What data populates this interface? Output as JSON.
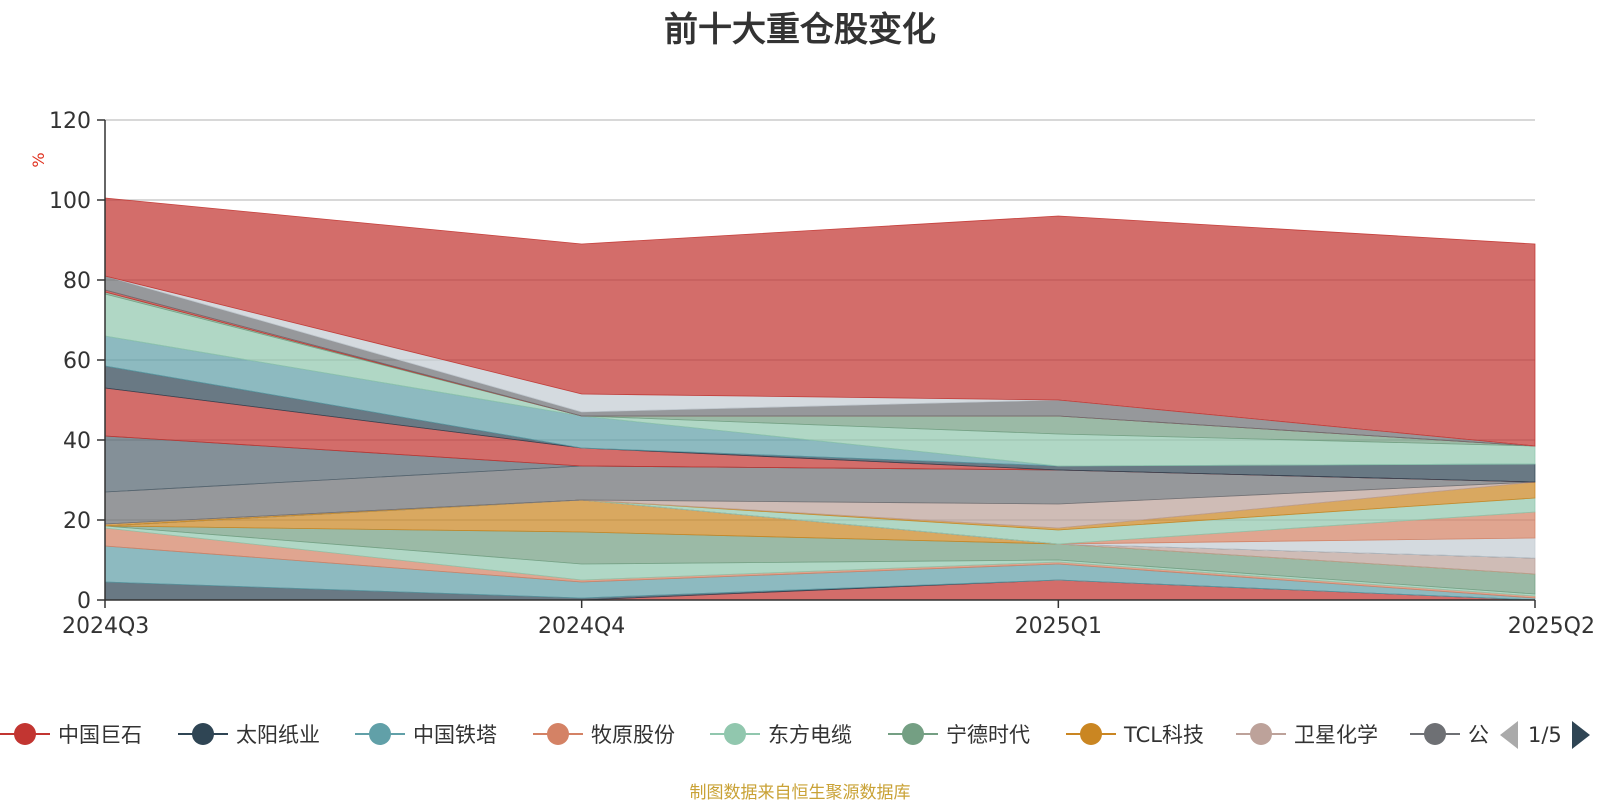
{
  "chart_data": {
    "type": "area",
    "stacked": true,
    "title": "前十大重仓股变化",
    "ylabel": "%",
    "ylim": [
      0,
      120
    ],
    "yticks": [
      0,
      20,
      40,
      60,
      80,
      100,
      120
    ],
    "x": [
      "2024Q3",
      "2024Q4",
      "2025Q1",
      "2025Q2"
    ],
    "grid": true,
    "legend_position": "bottom",
    "series": [
      {
        "name": "中国巨石",
        "color": "#c23531",
        "values": [
          0,
          0,
          5,
          0
        ]
      },
      {
        "name": "太阳纸业",
        "color": "#2f4554",
        "values": [
          4.5,
          0.5,
          0,
          0
        ]
      },
      {
        "name": "中国铁塔",
        "color": "#61a0a8",
        "values": [
          9,
          4,
          4,
          0.5
        ]
      },
      {
        "name": "牧原股份",
        "color": "#d48265",
        "values": [
          4.5,
          0.5,
          0.5,
          0.5
        ]
      },
      {
        "name": "东方电缆",
        "color": "#91c7ae",
        "values": [
          0.5,
          4,
          0.5,
          0.5
        ]
      },
      {
        "name": "宁德时代",
        "color": "#749f83",
        "values": [
          0,
          8,
          4,
          5
        ]
      },
      {
        "name": "TCL科技",
        "color": "#ca8622",
        "values": [
          0,
          8,
          0,
          0
        ]
      },
      {
        "name": "卫星化学",
        "color": "#bda29a",
        "values": [
          0,
          0,
          0,
          4
        ]
      },
      {
        "name": "",
        "color": "#6e7074",
        "values": [
          0,
          0,
          0,
          0
        ]
      },
      {
        "name": "",
        "color": "#546570",
        "values": [
          0,
          0,
          0,
          0
        ]
      },
      {
        "name": "",
        "color": "#c4ccd3",
        "values": [
          0,
          0,
          0,
          5
        ]
      },
      {
        "name": "",
        "color": "#d48265",
        "values": [
          0,
          0,
          0,
          6.5
        ]
      },
      {
        "name": "",
        "color": "#91c7ae",
        "values": [
          0,
          0,
          3.5,
          3.5
        ]
      },
      {
        "name": "",
        "color": "#ca8622",
        "values": [
          0.5,
          0,
          0.5,
          4
        ]
      },
      {
        "name": "",
        "color": "#bda29a",
        "values": [
          0,
          0,
          6,
          0
        ]
      },
      {
        "name": "",
        "color": "#6e7074",
        "values": [
          8,
          8.5,
          8.5,
          0
        ]
      },
      {
        "name": "",
        "color": "#546570",
        "values": [
          14,
          0,
          0,
          0
        ]
      },
      {
        "name": "",
        "color": "#c23531",
        "values": [
          12,
          4.5,
          0,
          0
        ]
      },
      {
        "name": "",
        "color": "#2f4554",
        "values": [
          5.5,
          0,
          1,
          4.5
        ]
      },
      {
        "name": "",
        "color": "#61a0a8",
        "values": [
          7.5,
          8,
          0,
          0
        ]
      },
      {
        "name": "",
        "color": "#91c7ae",
        "values": [
          10.5,
          0,
          8,
          4.5
        ]
      },
      {
        "name": "",
        "color": "#749f83",
        "values": [
          0.5,
          0,
          4.5,
          0
        ]
      },
      {
        "name": "",
        "color": "#c23531",
        "values": [
          0.5,
          0,
          0,
          0
        ]
      },
      {
        "name": "",
        "color": "#6e7074",
        "values": [
          3.5,
          1,
          4,
          0
        ]
      },
      {
        "name": "",
        "color": "#c4ccd3",
        "values": [
          0,
          4.5,
          0,
          0
        ]
      },
      {
        "name": "",
        "color": "#c23531",
        "values": [
          19.5,
          37.5,
          46,
          50.5
        ]
      }
    ]
  },
  "legend": {
    "items": [
      {
        "label": "中国巨石",
        "color": "#c23531"
      },
      {
        "label": "太阳纸业",
        "color": "#2f4554"
      },
      {
        "label": "中国铁塔",
        "color": "#61a0a8"
      },
      {
        "label": "牧原股份",
        "color": "#d48265"
      },
      {
        "label": "东方电缆",
        "color": "#91c7ae"
      },
      {
        "label": "宁德时代",
        "color": "#749f83"
      },
      {
        "label": "TCL科技",
        "color": "#ca8622"
      },
      {
        "label": "卫星化学",
        "color": "#bda29a"
      },
      {
        "label": "公",
        "color": "#6e7074"
      }
    ],
    "pager": {
      "label": "1/5"
    }
  },
  "footer": {
    "note": "制图数据来自恒生聚源数据库"
  }
}
